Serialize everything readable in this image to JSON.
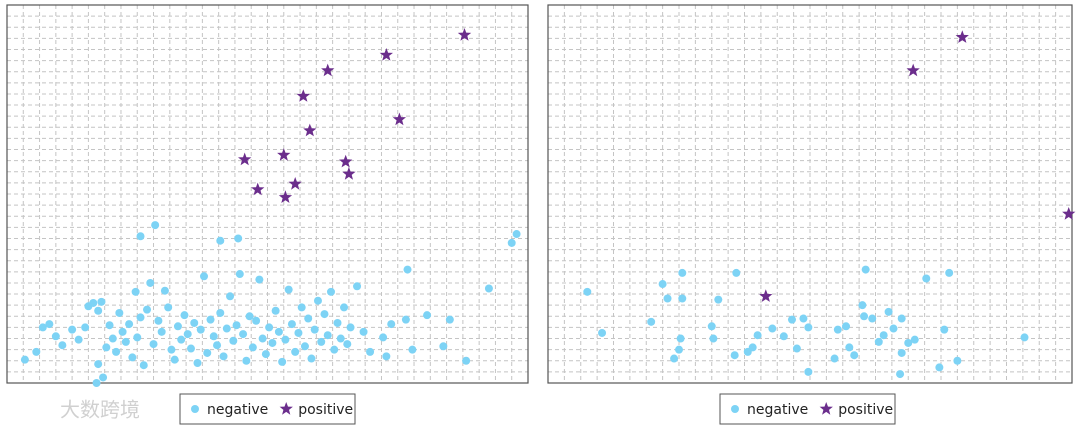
{
  "chart_data": [
    {
      "type": "scatter",
      "xlim": [
        0,
        32
      ],
      "ylim": [
        0,
        34
      ],
      "xticks": [
        0,
        1,
        2,
        3,
        4,
        5,
        6,
        7,
        8,
        9,
        10,
        11,
        12,
        13,
        14,
        15,
        16,
        17,
        18,
        19,
        20,
        21,
        22,
        23,
        24,
        25,
        26,
        27,
        28,
        29,
        30,
        31,
        32
      ],
      "yticks": [
        0,
        1,
        2,
        3,
        4,
        5,
        6,
        7,
        8,
        9,
        10,
        11,
        12,
        13,
        14,
        15,
        16,
        17,
        18,
        19,
        20,
        21,
        22,
        23,
        24,
        25,
        26,
        27,
        28,
        29,
        30,
        31,
        32,
        33,
        34
      ],
      "grid": true,
      "series": [
        {
          "name": "negative",
          "color": "#7dd3f5",
          "marker": "circle",
          "x": [
            1.1,
            1.8,
            2.2,
            2.6,
            3.0,
            3.4,
            4.0,
            4.4,
            4.8,
            5.0,
            5.3,
            5.6,
            5.8,
            5.5,
            5.6,
            5.9,
            6.1,
            6.3,
            6.5,
            6.7,
            6.9,
            7.1,
            7.3,
            7.5,
            7.7,
            7.9,
            8.0,
            8.2,
            8.4,
            8.6,
            8.8,
            9.0,
            9.3,
            9.5,
            9.7,
            9.9,
            10.1,
            10.3,
            10.5,
            10.7,
            10.9,
            11.1,
            11.3,
            11.5,
            11.7,
            11.9,
            12.1,
            12.3,
            12.5,
            12.7,
            12.9,
            13.1,
            13.3,
            13.5,
            13.7,
            13.9,
            14.1,
            14.3,
            14.5,
            14.7,
            14.9,
            15.1,
            15.3,
            15.5,
            15.7,
            15.9,
            16.1,
            16.3,
            16.5,
            16.7,
            16.9,
            17.1,
            17.3,
            17.5,
            17.7,
            17.9,
            18.1,
            18.3,
            18.5,
            18.7,
            18.9,
            19.1,
            19.3,
            19.5,
            19.7,
            19.9,
            20.1,
            20.3,
            20.5,
            20.7,
            20.9,
            21.1,
            21.5,
            21.9,
            22.3,
            23.1,
            23.3,
            23.6,
            24.5,
            24.9,
            25.8,
            26.8,
            27.2,
            28.2,
            9.1,
            8.2,
            14.2,
            13.1,
            31.3,
            31.0,
            24.6,
            29.6
          ],
          "values": [
            2.1,
            2.8,
            5.0,
            5.3,
            4.2,
            3.4,
            4.8,
            3.9,
            5.0,
            6.9,
            7.2,
            6.5,
            7.3,
            0.0,
            1.7,
            0.5,
            3.2,
            5.2,
            4.0,
            2.8,
            6.3,
            4.6,
            3.7,
            5.3,
            2.3,
            8.2,
            4.1,
            5.9,
            1.6,
            6.6,
            9.0,
            3.5,
            5.6,
            4.6,
            8.3,
            6.8,
            3.0,
            2.1,
            5.1,
            3.9,
            6.1,
            4.4,
            3.1,
            5.4,
            1.8,
            4.8,
            9.6,
            2.7,
            5.7,
            4.2,
            3.4,
            6.3,
            2.4,
            4.9,
            7.8,
            3.8,
            5.2,
            9.8,
            4.4,
            2.0,
            6.0,
            3.2,
            5.6,
            9.3,
            4.0,
            2.6,
            5.0,
            3.6,
            6.5,
            4.6,
            1.9,
            3.9,
            8.4,
            5.3,
            2.8,
            4.5,
            6.8,
            3.3,
            5.8,
            2.2,
            4.8,
            7.4,
            3.7,
            6.2,
            4.3,
            8.2,
            3.0,
            5.4,
            4.0,
            6.8,
            3.5,
            5.0,
            8.7,
            4.6,
            2.8,
            4.1,
            2.4,
            5.3,
            5.7,
            3.0,
            6.1,
            3.3,
            5.7,
            2.0,
            14.2,
            13.2,
            13.0,
            12.8,
            13.4,
            12.6,
            10.2,
            8.5
          ]
        },
        {
          "name": "positive",
          "color": "#6b2d8c",
          "marker": "star",
          "x": [
            28.1,
            23.3,
            19.7,
            18.2,
            18.6,
            24.1,
            14.6,
            17.0,
            20.8,
            21.0,
            17.7,
            15.4,
            17.1
          ],
          "values": [
            31.3,
            29.5,
            28.1,
            25.8,
            22.7,
            23.7,
            20.1,
            20.5,
            19.9,
            18.8,
            17.9,
            17.4,
            16.7
          ]
        }
      ]
    },
    {
      "type": "scatter",
      "xlim": [
        0,
        32
      ],
      "ylim": [
        0,
        34
      ],
      "xticks": [
        0,
        1,
        2,
        3,
        4,
        5,
        6,
        7,
        8,
        9,
        10,
        11,
        12,
        13,
        14,
        15,
        16,
        17,
        18,
        19,
        20,
        21,
        22,
        23,
        24,
        25,
        26,
        27,
        28,
        29,
        30,
        31,
        32
      ],
      "yticks": [
        0,
        1,
        2,
        3,
        4,
        5,
        6,
        7,
        8,
        9,
        10,
        11,
        12,
        13,
        14,
        15,
        16,
        17,
        18,
        19,
        20,
        21,
        22,
        23,
        24,
        25,
        26,
        27,
        28,
        29,
        30,
        31,
        32,
        33,
        34
      ],
      "grid": true,
      "series": [
        {
          "name": "negative",
          "color": "#7dd3f5",
          "marker": "circle",
          "x": [
            2.4,
            3.3,
            7.0,
            8.2,
            11.5,
            19.4,
            24.5,
            23.1,
            29.1,
            6.3,
            7.3,
            8.2,
            10.4,
            10.0,
            10.1,
            8.1,
            8.0,
            7.7,
            11.4,
            12.2,
            12.5,
            12.8,
            13.7,
            14.4,
            15.2,
            14.9,
            15.6,
            15.9,
            15.9,
            17.7,
            18.2,
            18.4,
            18.7,
            19.2,
            19.3,
            19.8,
            20.2,
            20.5,
            20.8,
            21.1,
            21.6,
            21.6,
            22.0,
            22.4,
            21.5,
            23.9,
            24.2,
            25.0,
            17.5
          ],
          "values": [
            8.2,
            4.5,
            8.9,
            9.9,
            9.9,
            10.2,
            9.9,
            9.4,
            4.1,
            5.5,
            7.6,
            7.6,
            7.5,
            5.1,
            4.0,
            4.0,
            3.0,
            2.2,
            2.5,
            2.8,
            3.2,
            4.3,
            4.9,
            4.2,
            3.1,
            5.7,
            5.8,
            5.0,
            1.0,
            4.8,
            5.1,
            3.2,
            2.5,
            7.0,
            6.0,
            5.8,
            3.7,
            4.3,
            6.4,
            4.9,
            5.8,
            2.7,
            3.6,
            3.9,
            0.8,
            1.4,
            4.8,
            2.0,
            2.2
          ]
        },
        {
          "name": "positive",
          "color": "#6b2d8c",
          "marker": "star",
          "x": [
            25.3,
            22.3,
            31.8,
            13.3
          ],
          "values": [
            31.1,
            28.1,
            15.2,
            7.8
          ]
        }
      ]
    }
  ],
  "watermark": "大数跨境"
}
